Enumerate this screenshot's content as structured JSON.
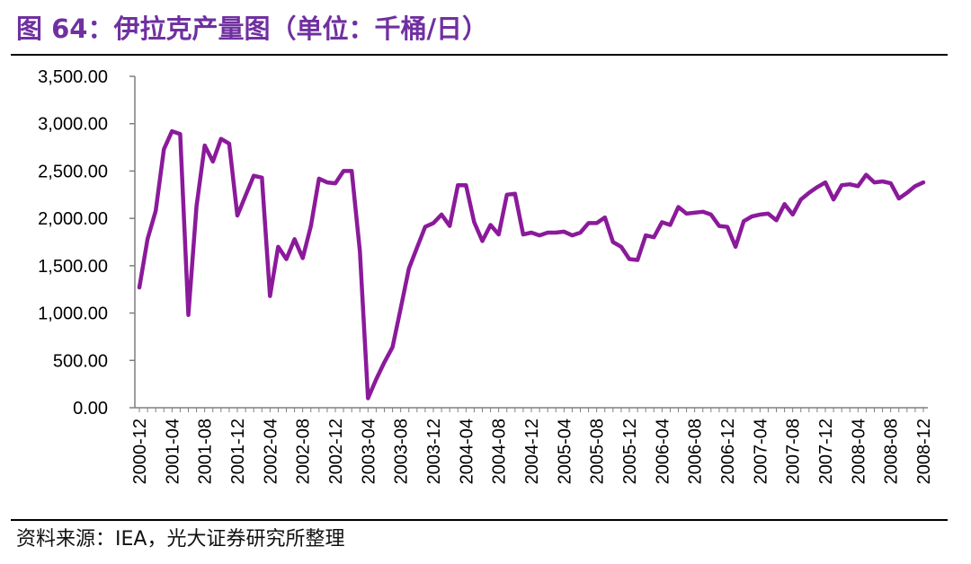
{
  "header": {
    "title": "图 64：伊拉克产量图（单位：千桶/日）"
  },
  "footer": {
    "source": "资料来源：IEA，光大证券研究所整理"
  },
  "colors": {
    "title": "#7030a0",
    "line": "#8b1a9b",
    "axis": "#7f7f7f"
  },
  "chart_data": {
    "type": "line",
    "title": "图 64：伊拉克产量图（单位：千桶/日）",
    "xlabel": "",
    "ylabel": "",
    "ylim": [
      0,
      3500
    ],
    "grid": false,
    "legend": "none",
    "y_ticks": [
      "0.00",
      "500.00",
      "1,000.00",
      "1,500.00",
      "2,000.00",
      "2,500.00",
      "3,000.00",
      "3,500.00"
    ],
    "x_tick_labels": [
      "2000-12",
      "2001-04",
      "2001-08",
      "2001-12",
      "2002-04",
      "2002-08",
      "2002-12",
      "2003-04",
      "2003-08",
      "2003-12",
      "2004-04",
      "2004-08",
      "2004-12",
      "2005-04",
      "2005-08",
      "2005-12",
      "2006-04",
      "2006-08",
      "2006-12",
      "2007-04",
      "2007-08",
      "2007-12",
      "2008-04",
      "2008-08",
      "2008-12"
    ],
    "x": [
      "2000-12",
      "2001-01",
      "2001-02",
      "2001-03",
      "2001-04",
      "2001-05",
      "2001-06",
      "2001-07",
      "2001-08",
      "2001-09",
      "2001-10",
      "2001-11",
      "2001-12",
      "2002-01",
      "2002-02",
      "2002-03",
      "2002-04",
      "2002-05",
      "2002-06",
      "2002-07",
      "2002-08",
      "2002-09",
      "2002-10",
      "2002-11",
      "2002-12",
      "2003-01",
      "2003-02",
      "2003-03",
      "2003-04",
      "2003-05",
      "2003-06",
      "2003-07",
      "2003-08",
      "2003-09",
      "2003-10",
      "2003-11",
      "2003-12",
      "2004-01",
      "2004-02",
      "2004-03",
      "2004-04",
      "2004-05",
      "2004-06",
      "2004-07",
      "2004-08",
      "2004-09",
      "2004-10",
      "2004-11",
      "2004-12",
      "2005-01",
      "2005-02",
      "2005-03",
      "2005-04",
      "2005-05",
      "2005-06",
      "2005-07",
      "2005-08",
      "2005-09",
      "2005-10",
      "2005-11",
      "2005-12",
      "2006-01",
      "2006-02",
      "2006-03",
      "2006-04",
      "2006-05",
      "2006-06",
      "2006-07",
      "2006-08",
      "2006-09",
      "2006-10",
      "2006-11",
      "2006-12",
      "2007-01",
      "2007-02",
      "2007-03",
      "2007-04",
      "2007-05",
      "2007-06",
      "2007-07",
      "2007-08",
      "2007-09",
      "2007-10",
      "2007-11",
      "2007-12",
      "2008-01",
      "2008-02",
      "2008-03",
      "2008-04",
      "2008-05",
      "2008-06",
      "2008-07",
      "2008-08",
      "2008-09",
      "2008-10",
      "2008-11",
      "2008-12"
    ],
    "series": [
      {
        "values": [
          1270,
          1780,
          2080,
          2730,
          2920,
          2890,
          980,
          2130,
          2770,
          2600,
          2840,
          2790,
          2030,
          2240,
          2450,
          2430,
          1180,
          1700,
          1570,
          1780,
          1580,
          1920,
          2420,
          2380,
          2370,
          2500,
          2500,
          1650,
          100,
          300,
          480,
          640,
          1050,
          1470,
          1690,
          1910,
          1950,
          2040,
          1920,
          2350,
          2350,
          1960,
          1760,
          1930,
          1830,
          2250,
          2260,
          1830,
          1850,
          1820,
          1850,
          1850,
          1860,
          1820,
          1850,
          1950,
          1950,
          2010,
          1750,
          1700,
          1570,
          1560,
          1820,
          1800,
          1960,
          1930,
          2120,
          2050,
          2060,
          2070,
          2040,
          1920,
          1910,
          1700,
          1970,
          2020,
          2040,
          2050,
          1980,
          2150,
          2040,
          2200,
          2270,
          2330,
          2380,
          2200,
          2350,
          2360,
          2340,
          2460,
          2380,
          2390,
          2370,
          2210,
          2270,
          2340,
          2380
        ]
      }
    ]
  }
}
